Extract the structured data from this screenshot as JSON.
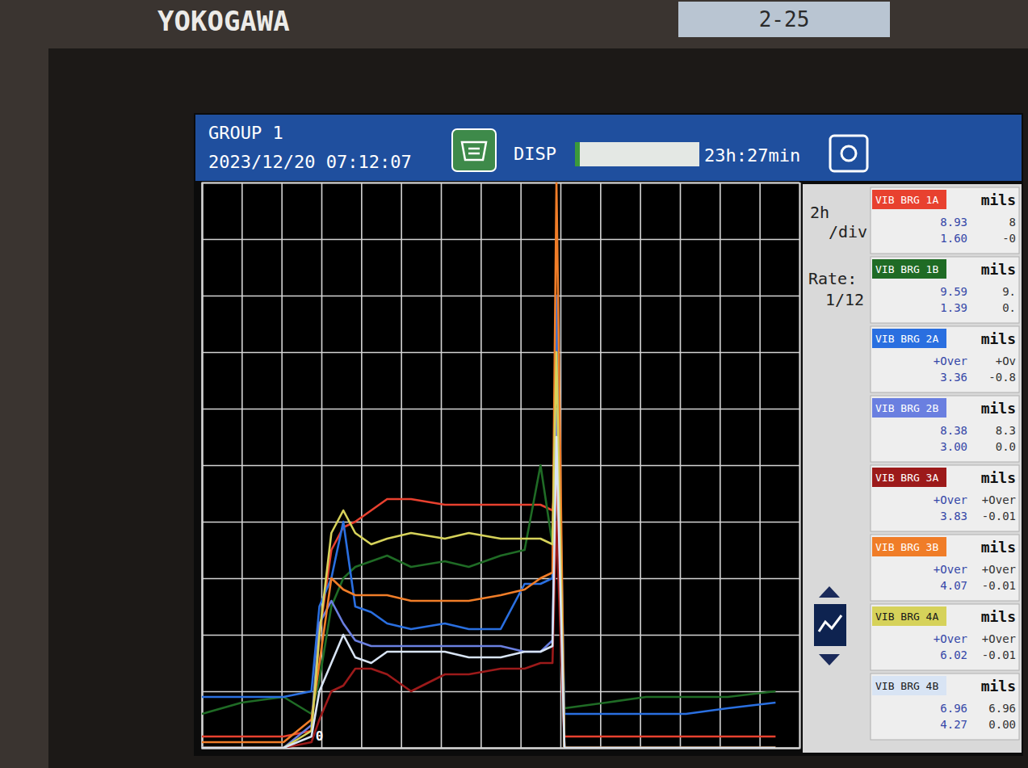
{
  "brand": "YOKOGAWA",
  "tag": "2-25",
  "header": {
    "group": "GROUP 1",
    "datetime": "2023/12/20 07:12:07",
    "disp": "DISP",
    "remaining": "23h:27min"
  },
  "panel": {
    "time_div": "2h",
    "per_div": "/div",
    "rate_label": "Rate:",
    "rate": "1/12",
    "readings": [
      {
        "unit": "mils",
        "left": [
          "8.93",
          "1.60"
        ],
        "right": [
          "8",
          "-0"
        ]
      },
      {
        "unit": "mils",
        "left": [
          "9.59",
          "1.39"
        ],
        "right": [
          "9.",
          "0."
        ]
      },
      {
        "unit": "mils",
        "left": [
          "+Over",
          "3.36"
        ],
        "right": [
          "+Ov",
          "-0.8"
        ]
      },
      {
        "unit": "mils",
        "left": [
          "8.38",
          "3.00"
        ],
        "right": [
          "8.3",
          "0.0"
        ]
      },
      {
        "unit": "mils",
        "left": [
          "+Over",
          "3.83"
        ],
        "right": [
          "+Over",
          "-0.01"
        ]
      },
      {
        "unit": "mils",
        "left": [
          "+Over",
          "4.07"
        ],
        "right": [
          "+Over",
          "-0.01"
        ]
      },
      {
        "unit": "mils",
        "left": [
          "+Over",
          "6.02"
        ],
        "right": [
          "+Over",
          "-0.01"
        ]
      },
      {
        "unit": "mils",
        "left": [
          "6.96",
          "4.27"
        ],
        "right": [
          "6.96",
          "0.00"
        ]
      }
    ]
  },
  "chart_data": {
    "type": "line",
    "x": [
      0,
      2.0,
      4.1,
      5.5,
      5.9,
      6.5,
      7.1,
      7.7,
      8.5,
      9.3,
      10.5,
      12.2,
      13.4,
      15.0,
      16.2,
      17.0,
      17.6,
      17.8,
      18.2,
      20.3,
      22.3,
      24.3,
      26.4,
      28.8
    ],
    "xlim": [
      0,
      30
    ],
    "xticks": [
      0,
      2,
      4,
      6,
      8,
      10,
      12,
      14,
      16,
      18,
      20,
      22,
      24,
      26,
      28,
      30
    ],
    "ylim": [
      0,
      100
    ],
    "yticks": [
      0,
      10,
      20,
      30,
      40,
      50,
      60,
      70,
      80,
      90,
      100
    ],
    "grid": true,
    "tick_labels": false,
    "legend": "right",
    "annotations": [
      {
        "text": "0",
        "x": 5.9,
        "y": 2
      }
    ],
    "series": [
      {
        "name": "VIB BRG 1A",
        "color": "#e8412f",
        "values": [
          2,
          2,
          2,
          3,
          20,
          35,
          39,
          40,
          42,
          44,
          44,
          43,
          43,
          43,
          43,
          43,
          42,
          48,
          2,
          2,
          2,
          2,
          2,
          2
        ]
      },
      {
        "name": "VIB BRG 1B",
        "color": "#1f6b25",
        "values": [
          6,
          8,
          9,
          6,
          12,
          25,
          30,
          32,
          33,
          34,
          32,
          33,
          32,
          34,
          35,
          50,
          36,
          60,
          7,
          8,
          9,
          9,
          9,
          10
        ]
      },
      {
        "name": "VIB BRG 2A",
        "color": "#2a6fe0",
        "values": [
          9,
          9,
          9,
          10,
          25,
          30,
          40,
          25,
          24,
          22,
          21,
          22,
          21,
          21,
          29,
          29,
          30,
          80,
          6,
          6,
          6,
          6,
          7,
          8
        ]
      },
      {
        "name": "VIB BRG 2B",
        "color": "#6a7fe0",
        "values": [
          0,
          0,
          0,
          4,
          22,
          26,
          22,
          19,
          18,
          18,
          18,
          18,
          18,
          18,
          17,
          17,
          19,
          60,
          0,
          0,
          0,
          0,
          0,
          0
        ]
      },
      {
        "name": "VIB BRG 3A",
        "color": "#9c1a1a",
        "values": [
          0,
          0,
          0,
          1,
          5,
          10,
          11,
          14,
          14,
          13,
          10,
          13,
          13,
          14,
          14,
          15,
          15,
          40,
          0,
          0,
          0,
          0,
          0,
          0
        ]
      },
      {
        "name": "VIB BRG 3B",
        "color": "#f07d28",
        "values": [
          1,
          1,
          1,
          5,
          15,
          30,
          28,
          27,
          27,
          27,
          26,
          26,
          26,
          27,
          28,
          30,
          31,
          100,
          0,
          0,
          0,
          0,
          0,
          0
        ]
      },
      {
        "name": "VIB BRG 4A",
        "color": "#d6d25a",
        "values": [
          0,
          0,
          0,
          3,
          20,
          38,
          42,
          38,
          36,
          37,
          38,
          37,
          38,
          37,
          37,
          37,
          36,
          70,
          0,
          0,
          0,
          0,
          0,
          0
        ]
      },
      {
        "name": "VIB BRG 4B",
        "color": "#d8e4f4",
        "values": [
          0,
          0,
          0,
          2,
          10,
          15,
          20,
          16,
          15,
          17,
          17,
          17,
          16,
          16,
          17,
          17,
          18,
          55,
          0,
          0,
          0,
          0,
          0,
          0
        ]
      }
    ]
  }
}
